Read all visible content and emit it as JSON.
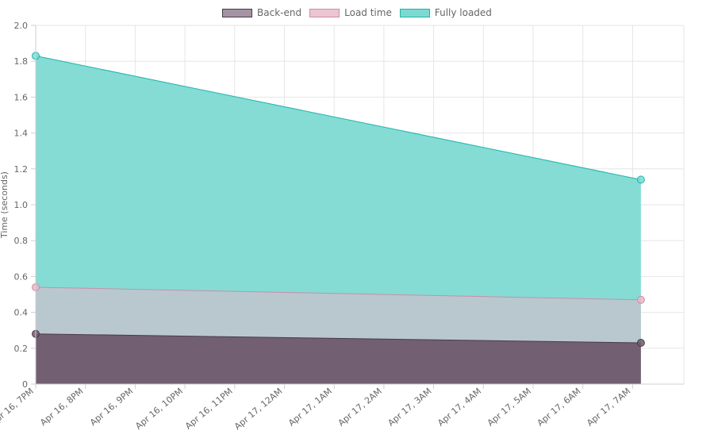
{
  "chart_data": {
    "type": "area",
    "ylabel": "Time (seconds)",
    "ylim": [
      0,
      2.0
    ],
    "yticks": [
      "0",
      "0.2",
      "0.4",
      "0.6",
      "0.8",
      "1.0",
      "1.2",
      "1.4",
      "1.6",
      "1.8",
      "2.0"
    ],
    "xticks": [
      "Apr 16, 7PM",
      "Apr 16, 8PM",
      "Apr 16, 9PM",
      "Apr 16, 10PM",
      "Apr 16, 11PM",
      "Apr 17, 12AM",
      "Apr 17, 1AM",
      "Apr 17, 2AM",
      "Apr 17, 3AM",
      "Apr 17, 4AM",
      "Apr 17, 5AM",
      "Apr 17, 6AM",
      "Apr 17, 7AM"
    ],
    "x": [
      "Apr 16, 7:00PM",
      "Apr 17, 7:10AM"
    ],
    "grid": true,
    "legend_position": "top-center",
    "series": [
      {
        "name": "Back-end",
        "values": [
          0.28,
          0.23
        ],
        "fill": "#6e5a6c",
        "stroke": "#4a3b48"
      },
      {
        "name": "Load time",
        "values": [
          0.54,
          0.47
        ],
        "fill": "#e6b8c8",
        "stroke": "#c88fa6"
      },
      {
        "name": "Fully loaded",
        "values": [
          1.83,
          1.14
        ],
        "fill": "#7ddad3",
        "stroke": "#1fb5ab"
      }
    ]
  }
}
